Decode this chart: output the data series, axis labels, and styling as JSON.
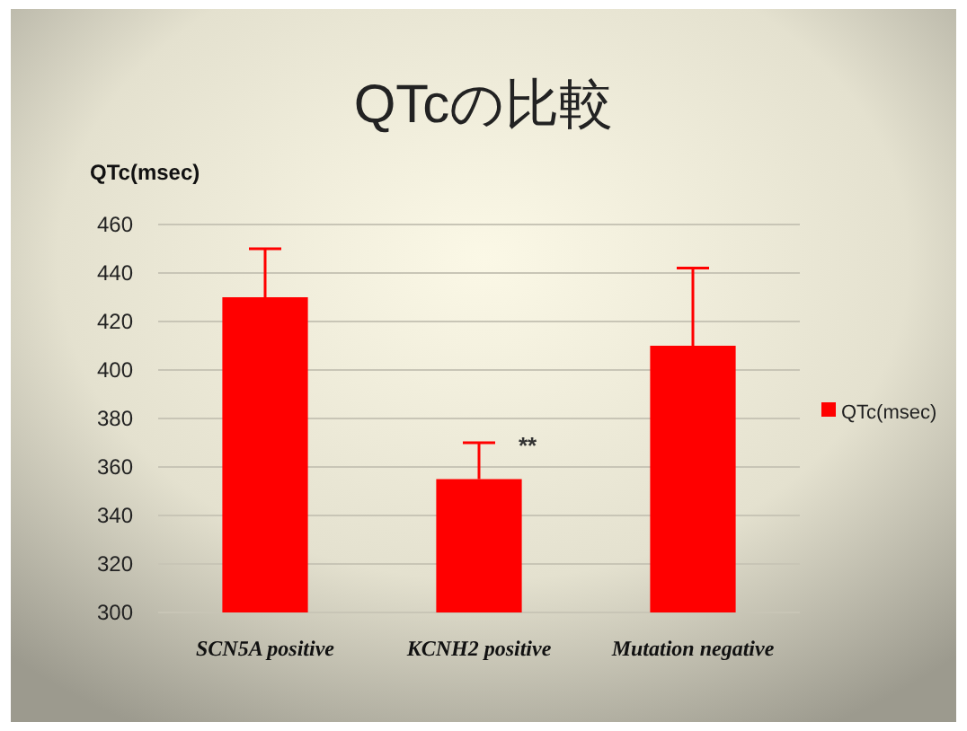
{
  "chart_data": {
    "type": "bar",
    "title": "QTcの比較",
    "ylabel": "QTc(msec)",
    "categories": [
      "SCN5A positive",
      "KCNH2 positive",
      "Mutation negative"
    ],
    "series": [
      {
        "name": "QTc(msec)",
        "color": "#ff0000",
        "values": [
          430,
          355,
          410
        ],
        "errors": [
          [
            430,
            450
          ],
          [
            355,
            370
          ],
          [
            410,
            442
          ]
        ]
      }
    ],
    "ylim": [
      300,
      460
    ],
    "yticks": [
      300,
      320,
      340,
      360,
      380,
      400,
      420,
      440,
      460
    ],
    "grid": "y",
    "legend": "right",
    "annotations": [
      {
        "text": "**",
        "x": "KCNH2 positive",
        "y": 370
      }
    ]
  }
}
